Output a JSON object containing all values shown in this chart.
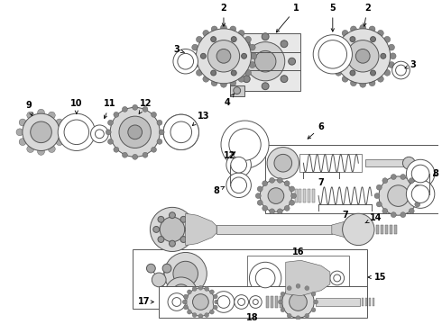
{
  "background_color": "#ffffff",
  "gray": "#555555",
  "dark": "#222222",
  "light": "#cccccc",
  "mid": "#999999"
}
